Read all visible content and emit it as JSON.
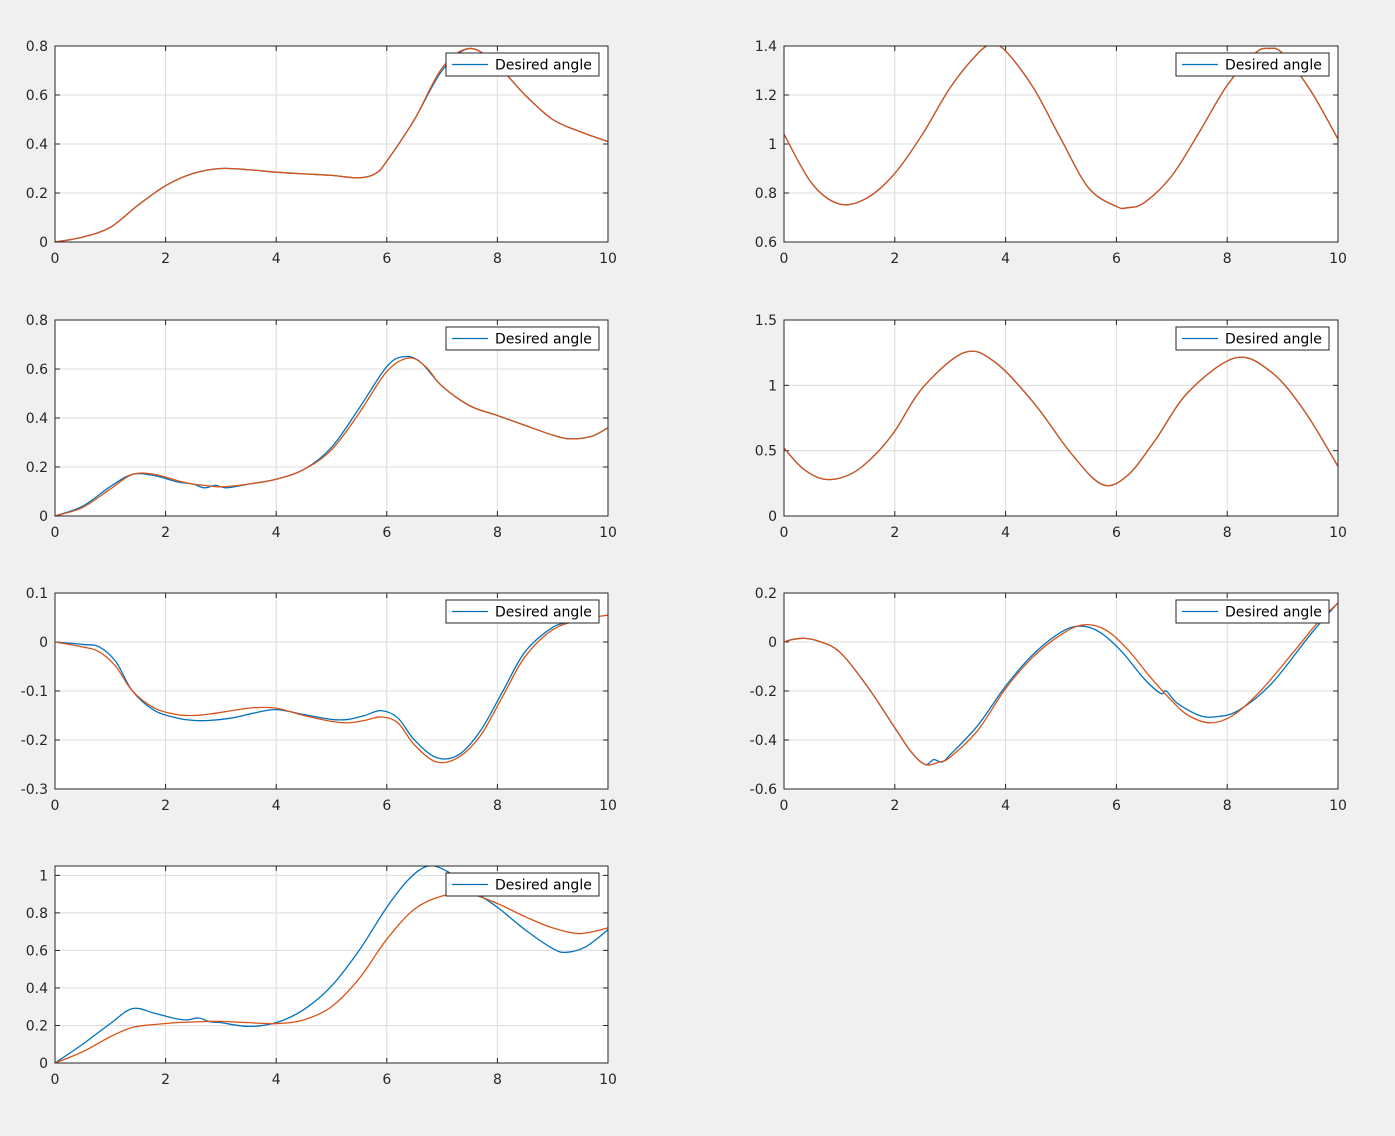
{
  "colors": {
    "background": "#f0f0f0",
    "axes_background": "#ffffff",
    "grid": "#dcdcdc",
    "axis_line": "#262626",
    "series_blue": "#0072bd",
    "series_orange": "#d95319"
  },
  "chart_data": [
    {
      "type": "line",
      "xlim": [
        0,
        10
      ],
      "ylim": [
        0,
        0.8
      ],
      "xticks": [
        "0",
        "2",
        "4",
        "6",
        "8",
        "10"
      ],
      "yticks": [
        "0",
        "0.2",
        "0.4",
        "0.6",
        "0.8"
      ],
      "grid": true,
      "legend": {
        "position": "top-right",
        "entries": [
          "Desired angle"
        ]
      },
      "series": [
        {
          "name": "Desired angle",
          "color": "blue",
          "x": [
            0,
            0.5,
            1,
            1.5,
            2,
            2.5,
            3,
            3.5,
            4,
            4.5,
            5,
            5.5,
            5.8,
            6,
            6.5,
            7,
            7.5,
            8,
            8.5,
            9,
            9.5,
            10
          ],
          "y": [
            0,
            0.02,
            0.06,
            0.15,
            0.23,
            0.28,
            0.3,
            0.295,
            0.285,
            0.278,
            0.272,
            0.262,
            0.28,
            0.33,
            0.5,
            0.7,
            0.79,
            0.72,
            0.6,
            0.5,
            0.45,
            0.41
          ]
        },
        {
          "color": "orange",
          "x": [
            0,
            0.5,
            1,
            1.5,
            2,
            2.5,
            3,
            3.5,
            4,
            4.5,
            5,
            5.5,
            5.8,
            6,
            6.5,
            7,
            7.5,
            8,
            8.5,
            9,
            9.5,
            10
          ],
          "y": [
            0,
            0.02,
            0.06,
            0.15,
            0.23,
            0.28,
            0.3,
            0.295,
            0.285,
            0.278,
            0.272,
            0.262,
            0.28,
            0.33,
            0.5,
            0.71,
            0.79,
            0.72,
            0.6,
            0.5,
            0.45,
            0.41
          ]
        }
      ]
    },
    {
      "type": "line",
      "xlim": [
        0,
        10
      ],
      "ylim": [
        0.6,
        1.4
      ],
      "xticks": [
        "0",
        "2",
        "4",
        "6",
        "8",
        "10"
      ],
      "yticks": [
        "0.6",
        "0.8",
        "1",
        "1.2",
        "1.4"
      ],
      "grid": true,
      "legend": {
        "position": "top-right",
        "entries": [
          "Desired angle"
        ]
      },
      "series": [
        {
          "name": "Desired angle",
          "color": "blue",
          "x": [
            0,
            0.5,
            1,
            1.5,
            2,
            2.5,
            3,
            3.5,
            3.75,
            4,
            4.5,
            5,
            5.5,
            6,
            6.2,
            6.5,
            7,
            7.5,
            8,
            8.5,
            8.75,
            9,
            9.5,
            10
          ],
          "y": [
            1.04,
            0.84,
            0.755,
            0.78,
            0.88,
            1.04,
            1.23,
            1.37,
            1.405,
            1.38,
            1.23,
            1.02,
            0.82,
            0.745,
            0.74,
            0.76,
            0.87,
            1.05,
            1.24,
            1.37,
            1.39,
            1.37,
            1.22,
            1.02
          ]
        },
        {
          "color": "orange",
          "x": [
            0,
            0.5,
            1,
            1.5,
            2,
            2.5,
            3,
            3.5,
            3.75,
            4,
            4.5,
            5,
            5.5,
            6,
            6.2,
            6.5,
            7,
            7.5,
            8,
            8.5,
            8.75,
            9,
            9.5,
            10
          ],
          "y": [
            1.04,
            0.84,
            0.755,
            0.78,
            0.88,
            1.04,
            1.23,
            1.37,
            1.405,
            1.38,
            1.23,
            1.02,
            0.82,
            0.745,
            0.74,
            0.76,
            0.87,
            1.05,
            1.24,
            1.37,
            1.39,
            1.37,
            1.22,
            1.02
          ]
        }
      ]
    },
    {
      "type": "line",
      "xlim": [
        0,
        10
      ],
      "ylim": [
        0,
        0.8
      ],
      "xticks": [
        "0",
        "2",
        "4",
        "6",
        "8",
        "10"
      ],
      "yticks": [
        "0",
        "0.2",
        "0.4",
        "0.6",
        "0.8"
      ],
      "grid": true,
      "legend": {
        "position": "top-right",
        "entries": [
          "Desired angle"
        ]
      },
      "series": [
        {
          "name": "Desired angle",
          "color": "blue",
          "x": [
            0,
            0.5,
            1,
            1.4,
            1.8,
            2.2,
            2.5,
            2.7,
            2.9,
            3.1,
            3.5,
            4,
            4.5,
            5,
            5.5,
            6,
            6.3,
            6.6,
            7,
            7.5,
            8,
            8.5,
            9,
            9.3,
            9.7,
            10
          ],
          "y": [
            0,
            0.04,
            0.12,
            0.17,
            0.165,
            0.14,
            0.13,
            0.115,
            0.125,
            0.115,
            0.13,
            0.15,
            0.19,
            0.28,
            0.44,
            0.61,
            0.65,
            0.63,
            0.53,
            0.45,
            0.41,
            0.37,
            0.33,
            0.315,
            0.325,
            0.36
          ]
        },
        {
          "color": "orange",
          "x": [
            0,
            0.5,
            1,
            1.4,
            1.8,
            2.2,
            2.5,
            2.7,
            2.9,
            3.1,
            3.5,
            4,
            4.5,
            5,
            5.5,
            6,
            6.4,
            6.7,
            7,
            7.5,
            8,
            8.5,
            9,
            9.3,
            9.7,
            10
          ],
          "y": [
            0,
            0.035,
            0.11,
            0.17,
            0.17,
            0.145,
            0.13,
            0.125,
            0.12,
            0.12,
            0.13,
            0.15,
            0.19,
            0.27,
            0.42,
            0.59,
            0.645,
            0.61,
            0.53,
            0.45,
            0.41,
            0.37,
            0.33,
            0.315,
            0.325,
            0.36
          ]
        }
      ]
    },
    {
      "type": "line",
      "xlim": [
        0,
        10
      ],
      "ylim": [
        0,
        1.5
      ],
      "xticks": [
        "0",
        "2",
        "4",
        "6",
        "8",
        "10"
      ],
      "yticks": [
        "0",
        "0.5",
        "1",
        "1.5"
      ],
      "grid": true,
      "legend": {
        "position": "top-right",
        "entries": [
          "Desired angle"
        ]
      },
      "series": [
        {
          "name": "Desired angle",
          "color": "blue",
          "x": [
            0,
            0.35,
            0.75,
            1.2,
            1.6,
            2,
            2.5,
            3.25,
            3.8,
            4.5,
            5.2,
            5.75,
            6.2,
            6.7,
            7.3,
            8.15,
            8.8,
            9.4,
            10
          ],
          "y": [
            0.52,
            0.36,
            0.28,
            0.32,
            0.45,
            0.65,
            0.98,
            1.25,
            1.18,
            0.87,
            0.47,
            0.24,
            0.31,
            0.58,
            0.95,
            1.21,
            1.1,
            0.8,
            0.38
          ]
        },
        {
          "color": "orange",
          "x": [
            0,
            0.35,
            0.75,
            1.2,
            1.6,
            2,
            2.5,
            3.25,
            3.8,
            4.5,
            5.2,
            5.75,
            6.2,
            6.7,
            7.3,
            8.15,
            8.8,
            9.4,
            10
          ],
          "y": [
            0.52,
            0.36,
            0.28,
            0.32,
            0.45,
            0.65,
            0.98,
            1.25,
            1.18,
            0.87,
            0.47,
            0.24,
            0.31,
            0.58,
            0.95,
            1.21,
            1.1,
            0.8,
            0.38
          ]
        }
      ]
    },
    {
      "type": "line",
      "xlim": [
        0,
        10
      ],
      "ylim": [
        -0.3,
        0.1
      ],
      "xticks": [
        "0",
        "2",
        "4",
        "6",
        "8",
        "10"
      ],
      "yticks": [
        "-0.3",
        "-0.2",
        "-0.1",
        "0",
        "0.1"
      ],
      "grid": true,
      "legend": {
        "position": "top-right",
        "entries": [
          "Desired angle"
        ]
      },
      "series": [
        {
          "name": "Desired angle",
          "color": "blue",
          "x": [
            0,
            0.5,
            0.8,
            1.1,
            1.4,
            1.8,
            2.2,
            2.5,
            2.8,
            3.2,
            3.6,
            4,
            4.5,
            5,
            5.3,
            5.6,
            5.9,
            6.2,
            6.5,
            6.9,
            7.3,
            7.7,
            8.1,
            8.5,
            9,
            9.3
          ],
          "y": [
            0,
            -0.005,
            -0.01,
            -0.04,
            -0.1,
            -0.14,
            -0.155,
            -0.16,
            -0.16,
            -0.155,
            -0.145,
            -0.138,
            -0.148,
            -0.158,
            -0.158,
            -0.15,
            -0.14,
            -0.155,
            -0.2,
            -0.236,
            -0.23,
            -0.18,
            -0.1,
            -0.02,
            0.03,
            0.04
          ]
        },
        {
          "color": "orange",
          "x": [
            0,
            0.5,
            0.8,
            1.1,
            1.4,
            1.8,
            2.2,
            2.5,
            2.8,
            3.2,
            3.6,
            4,
            4.5,
            5,
            5.3,
            5.6,
            5.9,
            6.2,
            6.5,
            6.9,
            7.3,
            7.7,
            8.1,
            8.5,
            9,
            9.5,
            10
          ],
          "y": [
            0,
            -0.01,
            -0.02,
            -0.05,
            -0.1,
            -0.135,
            -0.148,
            -0.15,
            -0.147,
            -0.14,
            -0.134,
            -0.135,
            -0.15,
            -0.162,
            -0.165,
            -0.16,
            -0.153,
            -0.165,
            -0.21,
            -0.245,
            -0.235,
            -0.19,
            -0.11,
            -0.03,
            0.025,
            0.045,
            0.055
          ]
        }
      ]
    },
    {
      "type": "line",
      "xlim": [
        0,
        10
      ],
      "ylim": [
        -0.6,
        0.2
      ],
      "xticks": [
        "0",
        "2",
        "4",
        "6",
        "8",
        "10"
      ],
      "yticks": [
        "-0.6",
        "-0.4",
        "-0.2",
        "0",
        "0.2"
      ],
      "grid": true,
      "legend": {
        "position": "top-right",
        "entries": [
          "Desired angle"
        ]
      },
      "series": [
        {
          "name": "Desired angle",
          "color": "blue",
          "x": [
            0,
            0.15,
            0.35,
            0.6,
            1,
            1.5,
            2,
            2.3,
            2.55,
            2.7,
            2.85,
            3,
            3.5,
            4,
            4.5,
            5,
            5.35,
            5.7,
            6.1,
            6.5,
            6.8,
            6.9,
            7.1,
            7.5,
            7.8,
            8.2,
            8.8,
            9.5,
            10
          ],
          "y": [
            0,
            0.01,
            0.015,
            0.005,
            -0.04,
            -0.18,
            -0.35,
            -0.45,
            -0.5,
            -0.48,
            -0.49,
            -0.46,
            -0.34,
            -0.18,
            -0.05,
            0.04,
            0.065,
            0.04,
            -0.04,
            -0.15,
            -0.21,
            -0.2,
            -0.25,
            -0.3,
            -0.305,
            -0.28,
            -0.17,
            0.03,
            0.16
          ]
        },
        {
          "color": "orange",
          "x": [
            0,
            0.15,
            0.35,
            0.6,
            1,
            1.5,
            2,
            2.3,
            2.55,
            2.8,
            3,
            3.5,
            4,
            4.5,
            5,
            5.4,
            5.8,
            6.2,
            6.6,
            7,
            7.3,
            7.7,
            8.1,
            8.6,
            9.2,
            9.6,
            10
          ],
          "y": [
            0,
            0.01,
            0.015,
            0.005,
            -0.04,
            -0.18,
            -0.35,
            -0.45,
            -0.5,
            -0.49,
            -0.47,
            -0.36,
            -0.19,
            -0.06,
            0.03,
            0.07,
            0.05,
            -0.03,
            -0.14,
            -0.24,
            -0.3,
            -0.33,
            -0.3,
            -0.2,
            -0.04,
            0.07,
            0.16
          ]
        }
      ]
    },
    {
      "type": "line",
      "xlim": [
        0,
        10
      ],
      "ylim": [
        0,
        1.05
      ],
      "xticks": [
        "0",
        "2",
        "4",
        "6",
        "8",
        "10"
      ],
      "yticks": [
        "0",
        "0.2",
        "0.4",
        "0.6",
        "0.8",
        "1"
      ],
      "grid": true,
      "legend": {
        "position": "top-right",
        "entries": [
          "Desired angle"
        ]
      },
      "series": [
        {
          "name": "Desired angle",
          "color": "blue",
          "x": [
            0,
            0.5,
            1,
            1.4,
            1.8,
            2.2,
            2.4,
            2.6,
            2.8,
            3,
            3.5,
            4,
            4.5,
            5,
            5.5,
            6,
            6.4,
            6.75,
            7.1,
            7.5,
            8,
            8.5,
            9,
            9.25,
            9.6,
            10
          ],
          "y": [
            0,
            0.1,
            0.21,
            0.29,
            0.265,
            0.235,
            0.23,
            0.24,
            0.22,
            0.215,
            0.195,
            0.215,
            0.285,
            0.41,
            0.6,
            0.83,
            0.98,
            1.05,
            1.02,
            0.93,
            0.83,
            0.71,
            0.61,
            0.59,
            0.62,
            0.71
          ]
        },
        {
          "color": "orange",
          "x": [
            0,
            0.5,
            1,
            1.4,
            1.8,
            2.2,
            2.6,
            3,
            3.5,
            4,
            4.5,
            5,
            5.5,
            6,
            6.5,
            7,
            7.5,
            8,
            8.5,
            9,
            9.5,
            10
          ],
          "y": [
            0,
            0.06,
            0.14,
            0.19,
            0.205,
            0.215,
            0.22,
            0.222,
            0.215,
            0.21,
            0.23,
            0.3,
            0.45,
            0.66,
            0.82,
            0.89,
            0.9,
            0.85,
            0.78,
            0.72,
            0.69,
            0.72
          ]
        }
      ]
    }
  ]
}
